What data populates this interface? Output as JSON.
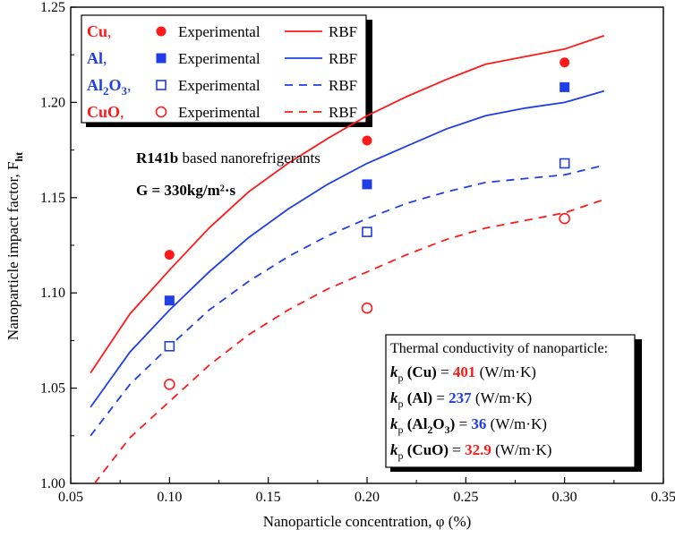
{
  "chart_data": {
    "type": "scatter",
    "xlabel": "Nanoparticle concentration, φ (%)",
    "ylabel": "Nanoparticle impact factor, F",
    "ylabel_sub": "ht",
    "xlim": [
      0.05,
      0.35
    ],
    "ylim": [
      1.0,
      1.25
    ],
    "xticks": [
      "0.05",
      "0.10",
      "0.15",
      "0.20",
      "0.25",
      "0.30",
      "0.35"
    ],
    "yticks": [
      "1.00",
      "1.05",
      "1.10",
      "1.15",
      "1.20",
      "1.25"
    ],
    "annotation_line1_bold": "R141b",
    "annotation_line1_rest": " based nanorefrigerants",
    "annotation_line2": "G = 330kg/m²·s",
    "legend_experimental": "Experimental",
    "legend_model": "RBF",
    "colors": {
      "red": "#ff1a1a",
      "blue": "#1f3ee6"
    },
    "series": [
      {
        "name": "Cu",
        "label": "Cu,",
        "color": "#ff1a1a",
        "marker": "filled-circle",
        "line": "solid",
        "experimental": {
          "x": [
            0.1,
            0.2,
            0.3
          ],
          "y": [
            1.12,
            1.18,
            1.221
          ]
        },
        "rbf": {
          "x": [
            0.06,
            0.08,
            0.1,
            0.12,
            0.14,
            0.16,
            0.18,
            0.2,
            0.22,
            0.24,
            0.26,
            0.28,
            0.3,
            0.32
          ],
          "y": [
            1.058,
            1.089,
            1.112,
            1.134,
            1.153,
            1.168,
            1.181,
            1.193,
            1.203,
            1.212,
            1.22,
            1.224,
            1.228,
            1.235
          ]
        }
      },
      {
        "name": "Al",
        "label": "Al,",
        "color": "#1f3ee6",
        "marker": "filled-square",
        "line": "solid",
        "experimental": {
          "x": [
            0.1,
            0.2,
            0.3
          ],
          "y": [
            1.096,
            1.157,
            1.208
          ]
        },
        "rbf": {
          "x": [
            0.06,
            0.08,
            0.1,
            0.12,
            0.14,
            0.16,
            0.18,
            0.2,
            0.22,
            0.24,
            0.26,
            0.28,
            0.3,
            0.32
          ],
          "y": [
            1.04,
            1.069,
            1.091,
            1.111,
            1.129,
            1.144,
            1.157,
            1.168,
            1.177,
            1.186,
            1.193,
            1.197,
            1.2,
            1.206
          ]
        }
      },
      {
        "name": "Al2O3",
        "label": "Al2O3,",
        "color": "#1f3ee6",
        "marker": "open-square",
        "line": "dashed",
        "experimental": {
          "x": [
            0.1,
            0.2,
            0.3
          ],
          "y": [
            1.072,
            1.132,
            1.168
          ]
        },
        "rbf": {
          "x": [
            0.06,
            0.08,
            0.1,
            0.12,
            0.14,
            0.16,
            0.18,
            0.2,
            0.22,
            0.24,
            0.26,
            0.28,
            0.3,
            0.32
          ],
          "y": [
            1.025,
            1.052,
            1.072,
            1.091,
            1.106,
            1.119,
            1.13,
            1.139,
            1.147,
            1.153,
            1.158,
            1.16,
            1.162,
            1.167
          ]
        }
      },
      {
        "name": "CuO",
        "label": "CuO,",
        "color": "#ff1a1a",
        "marker": "open-circle",
        "line": "dashed",
        "experimental": {
          "x": [
            0.1,
            0.2,
            0.3
          ],
          "y": [
            1.052,
            1.092,
            1.139
          ]
        },
        "rbf": {
          "x": [
            0.062,
            0.08,
            0.1,
            0.12,
            0.14,
            0.16,
            0.18,
            0.2,
            0.22,
            0.24,
            0.26,
            0.28,
            0.3,
            0.32
          ],
          "y": [
            1.0,
            1.024,
            1.043,
            1.062,
            1.078,
            1.091,
            1.102,
            1.111,
            1.12,
            1.128,
            1.134,
            1.138,
            1.142,
            1.149
          ]
        }
      }
    ],
    "conductivity_box": {
      "title": "Thermal conductivity of nanoparticle:",
      "unit": "(W/m·K)",
      "rows": [
        {
          "material": "(Cu)",
          "value": "401",
          "color": "#ff1a1a"
        },
        {
          "material": "(Al)",
          "value": "237",
          "color": "#1f3ee6"
        },
        {
          "material": "(Al2O3)",
          "value": "36",
          "color": "#1f3ee6"
        },
        {
          "material": "(CuO)",
          "value": "32.9",
          "color": "#ff1a1a"
        }
      ]
    }
  }
}
